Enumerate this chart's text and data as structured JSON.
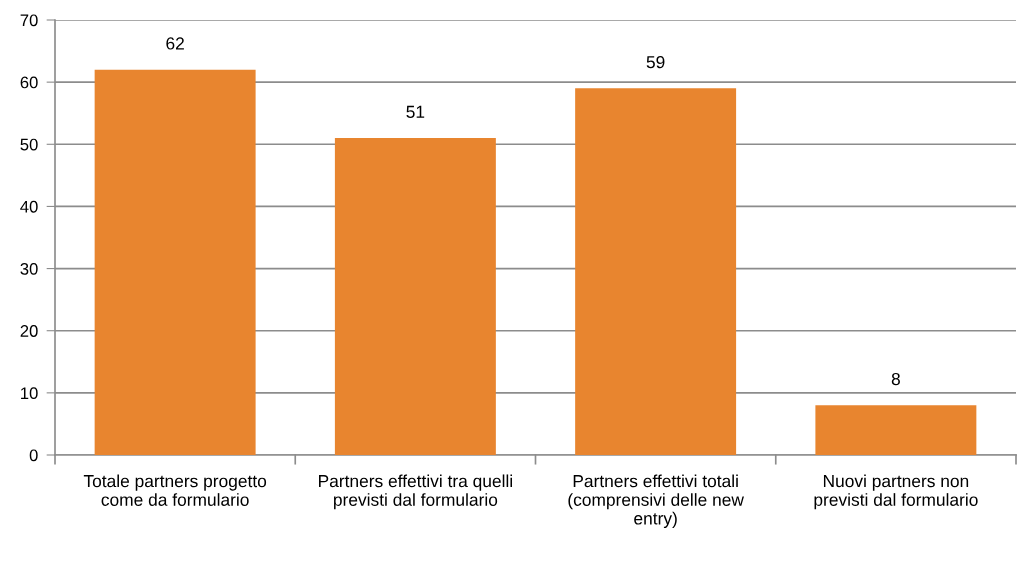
{
  "chart_data": {
    "type": "bar",
    "categories": [
      "Totale partners progetto\ncome da formulario",
      "Partners effettivi tra quelli\nprevisti dal formulario",
      "Partners effettivi totali\n(comprensivi delle new\nentry)",
      "Nuovi partners non\nprevisti dal formulario"
    ],
    "values": [
      62,
      51,
      59,
      8
    ],
    "color": "#e8852f",
    "ylim": [
      0,
      70
    ],
    "yticks": [
      0,
      10,
      20,
      30,
      40,
      50,
      60,
      70
    ],
    "grid": "y",
    "data_labels": true,
    "legend": false
  }
}
